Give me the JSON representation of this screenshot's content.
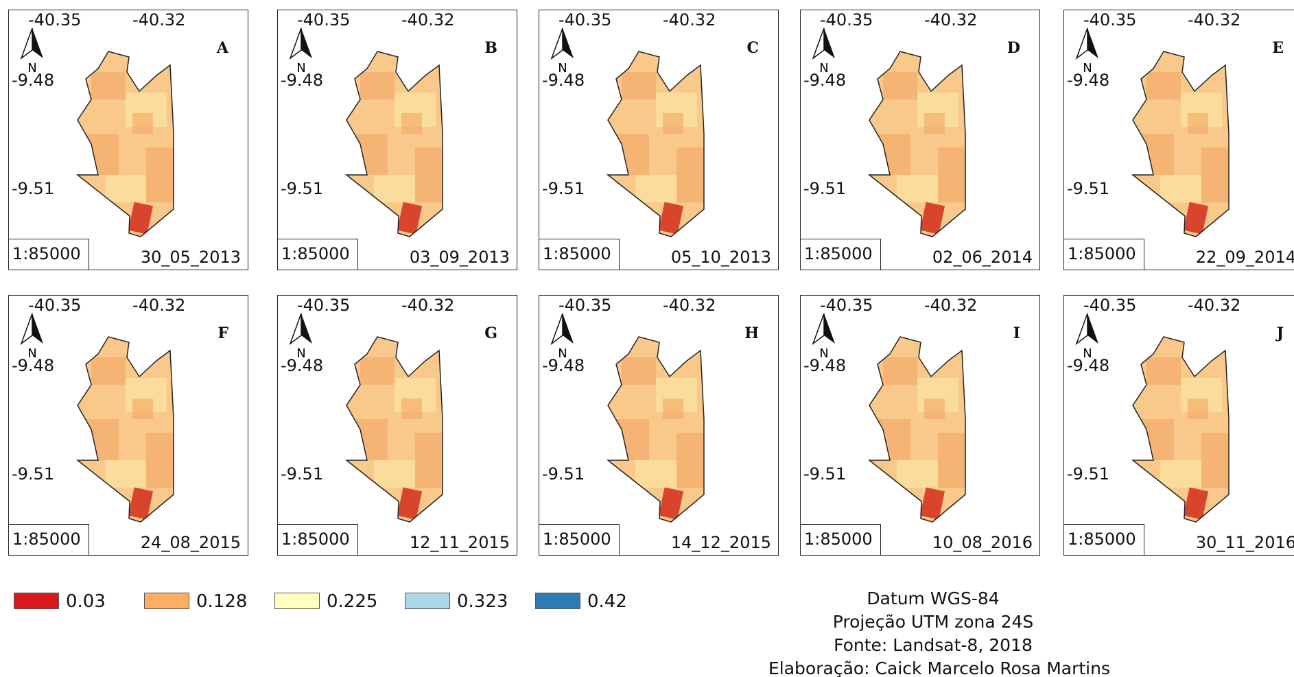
{
  "axes": {
    "lon_left": "-40.35",
    "lon_right": "-40.32",
    "lat_top": "-9.48",
    "lat_bottom": "-9.51"
  },
  "north_label": "N",
  "scale": "1:85000",
  "panels": [
    {
      "letter": "A",
      "date": "30_05_2013"
    },
    {
      "letter": "B",
      "date": "03_09_2013"
    },
    {
      "letter": "C",
      "date": "05_10_2013"
    },
    {
      "letter": "D",
      "date": "02_06_2014"
    },
    {
      "letter": "E",
      "date": "22_09_2014"
    },
    {
      "letter": "F",
      "date": "24_08_2015"
    },
    {
      "letter": "G",
      "date": "12_11_2015"
    },
    {
      "letter": "H",
      "date": "14_12_2015"
    },
    {
      "letter": "I",
      "date": "10_08_2016"
    },
    {
      "letter": "J",
      "date": "30_11_2016"
    }
  ],
  "legend": [
    {
      "label": "0.03",
      "color": "#d7191c"
    },
    {
      "label": "0.128",
      "color": "#fdae61"
    },
    {
      "label": "0.225",
      "color": "#ffffbf"
    },
    {
      "label": "0.323",
      "color": "#abd9e9"
    },
    {
      "label": "0.42",
      "color": "#2c7bb6"
    }
  ],
  "credits": {
    "datum": "Datum WGS-84",
    "projection": "Projeção UTM zona 24S",
    "source": "Fonte: Landsat-8, 2018",
    "author": "Elaboração: Caick Marcelo Rosa Martins"
  },
  "map_fill": {
    "base": "#f8c98a",
    "warm": "#f3a764",
    "cool": "#fbe9a8",
    "hot": "#d9452c"
  }
}
